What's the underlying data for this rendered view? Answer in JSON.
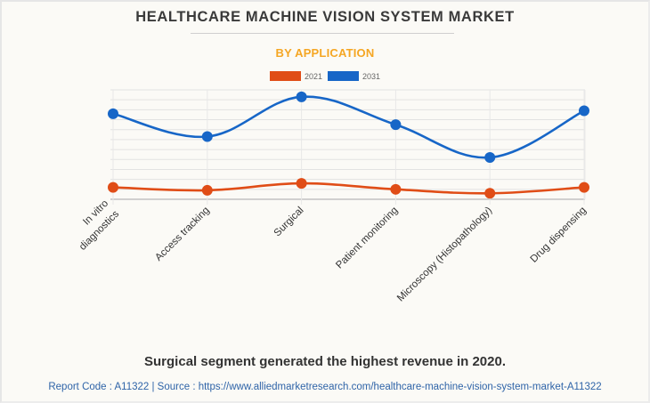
{
  "header": {
    "title": "HEALTHCARE MACHINE VISION SYSTEM MARKET",
    "subtitle": "BY APPLICATION"
  },
  "legend": [
    {
      "label": "2021",
      "color": "#e04d17"
    },
    {
      "label": "2031",
      "color": "#1766c7"
    }
  ],
  "chart_data": {
    "type": "line",
    "title": "HEALTHCARE MACHINE VISION SYSTEM MARKET",
    "subtitle": "BY APPLICATION",
    "xlabel": "",
    "ylabel": "",
    "y_unit_note": "No y-axis labels shown; values are relative units estimated from gridlines (each gridline = 10 units)",
    "ylim": [
      0,
      110
    ],
    "grid": true,
    "smooth": true,
    "legend_position": "top-center",
    "categories": [
      [
        "In vitro",
        "diagnostics"
      ],
      [
        "Access tracking"
      ],
      [
        "Surgical"
      ],
      [
        "Patient monitoring"
      ],
      [
        "Microscopy (Histopathology)"
      ],
      [
        "Drug dispensing"
      ]
    ],
    "series": [
      {
        "name": "2021",
        "color": "#e04d17",
        "values": [
          12,
          9,
          16,
          10,
          6,
          12
        ]
      },
      {
        "name": "2031",
        "color": "#1766c7",
        "values": [
          86,
          63,
          103,
          75,
          42,
          89
        ]
      }
    ]
  },
  "footer": {
    "note": "Surgical segment generated the highest revenue in 2020.",
    "source": "Report Code : A11322  |  Source : https://www.alliedmarketresearch.com/healthcare-machine-vision-system-market-A11322"
  }
}
